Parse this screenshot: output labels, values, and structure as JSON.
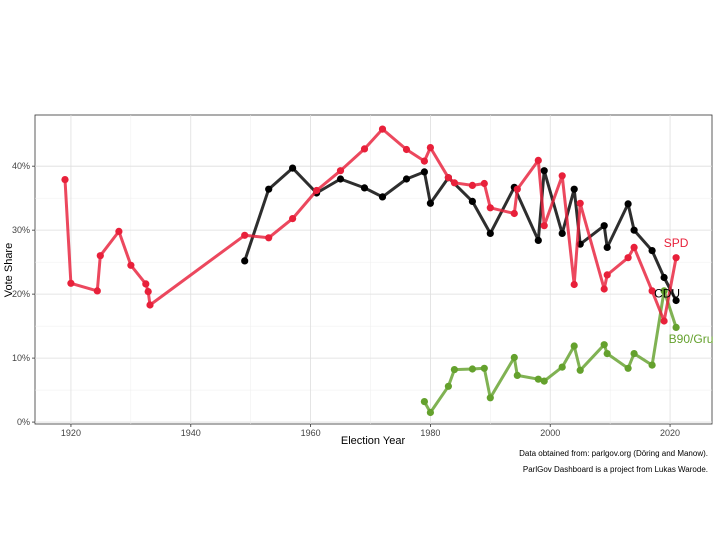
{
  "chart_data": {
    "type": "line",
    "title": "",
    "xlabel": "Election Year",
    "ylabel": "Vote Share",
    "xlim": [
      1914,
      2027
    ],
    "ylim": [
      -0.3,
      48
    ],
    "x_ticks": [
      1920,
      1940,
      1960,
      1980,
      2000,
      2020
    ],
    "y_ticks": [
      0,
      10,
      20,
      30,
      40
    ],
    "y_tick_labels": [
      "0%",
      "10%",
      "20%",
      "30%",
      "40%"
    ],
    "grid": true,
    "legend": "none",
    "series": [
      {
        "name": "SPD",
        "color": "#e8203a",
        "x": [
          1919,
          1920,
          1924.4,
          1924.9,
          1928,
          1930,
          1932.5,
          1932.9,
          1933.2,
          1949,
          1953,
          1957,
          1961,
          1965,
          1969,
          1972,
          1976,
          1980,
          1983,
          1987,
          1990,
          1994,
          1998,
          2002,
          2005,
          2009,
          2013,
          2017,
          2021
        ],
        "y": [
          37.9,
          21.7,
          20.5,
          26.0,
          29.8,
          24.5,
          21.6,
          20.4,
          18.3,
          29.2,
          28.8,
          31.8,
          36.2,
          39.3,
          42.7,
          45.8,
          42.6,
          42.9,
          38.2,
          37.0,
          33.5,
          36.4,
          40.9,
          38.5,
          34.2,
          23.0,
          25.7,
          20.5,
          25.7
        ]
      },
      {
        "name": "CDU",
        "color": "#000000",
        "x": [
          1949,
          1953,
          1957,
          1961,
          1965,
          1969,
          1972,
          1976,
          1980,
          1983,
          1987,
          1990,
          1994,
          1998,
          2002,
          2005,
          2009,
          2013,
          2017,
          2021
        ],
        "y": [
          25.2,
          36.4,
          39.7,
          35.8,
          38.0,
          36.6,
          35.2,
          38.0,
          34.2,
          38.2,
          34.5,
          36.7,
          34.2,
          28.4,
          29.5,
          27.8,
          27.3,
          34.1,
          26.8,
          19.0
        ]
      },
      {
        "name": "B90/Gru",
        "color": "#64a12d",
        "x": [
          1980,
          1983,
          1987,
          1990,
          1994,
          1998,
          2002,
          2005,
          2009,
          2013,
          2017,
          2021
        ],
        "y": [
          1.5,
          5.6,
          8.3,
          3.8,
          7.3,
          6.7,
          8.6,
          8.1,
          10.7,
          8.4,
          8.9,
          14.8
        ]
      }
    ],
    "series_paths": [
      {
        "name": "SPD",
        "color": "#e8203a",
        "x": [
          1919,
          1920,
          1924.4,
          1924.9,
          1928,
          1930,
          1932.5,
          1932.9,
          1933.2,
          1949,
          1953,
          1957,
          1961,
          1965,
          1969,
          1972,
          1976,
          1979,
          1980,
          1983,
          1984,
          1987,
          1989,
          1990,
          1994,
          1994.5,
          1998,
          1999,
          2002,
          2004,
          2005,
          2009,
          2009.5,
          2013,
          2014,
          2017,
          2019,
          2021
        ],
        "y": [
          37.9,
          21.7,
          20.5,
          26.0,
          29.8,
          24.5,
          21.6,
          20.4,
          18.3,
          29.2,
          28.8,
          31.8,
          36.2,
          39.3,
          42.7,
          45.8,
          42.6,
          40.8,
          42.9,
          38.2,
          37.4,
          37.0,
          37.3,
          33.5,
          32.6,
          36.4,
          40.9,
          30.7,
          38.5,
          21.5,
          34.2,
          20.8,
          23.0,
          25.7,
          27.3,
          20.5,
          15.8,
          25.7
        ]
      },
      {
        "name": "CDU",
        "color": "#000000",
        "x": [
          1949,
          1953,
          1957,
          1961,
          1965,
          1969,
          1972,
          1976,
          1979,
          1980,
          1983,
          1987,
          1990,
          1994,
          1998,
          1999,
          2002,
          2004,
          2005,
          2009,
          2009.5,
          2013,
          2014,
          2017,
          2019,
          2021
        ],
        "y": [
          25.2,
          36.4,
          39.7,
          35.8,
          38.0,
          36.6,
          35.2,
          38.0,
          39.1,
          34.2,
          38.2,
          34.5,
          29.5,
          36.7,
          28.4,
          39.3,
          29.5,
          36.4,
          27.8,
          30.7,
          27.3,
          34.1,
          30.0,
          26.8,
          22.6,
          19.0
        ]
      },
      {
        "name": "B90/Gru",
        "color": "#64a12d",
        "x": [
          1979,
          1980,
          1983,
          1984,
          1987,
          1989,
          1990,
          1994,
          1994.5,
          1998,
          1999,
          2002,
          2004,
          2005,
          2009,
          2009.5,
          2013,
          2014,
          2017,
          2019,
          2021
        ],
        "y": [
          3.2,
          1.5,
          5.6,
          8.2,
          8.3,
          8.4,
          3.8,
          10.1,
          7.3,
          6.7,
          6.4,
          8.6,
          11.9,
          8.1,
          12.1,
          10.7,
          8.4,
          10.7,
          8.9,
          20.5,
          14.8
        ]
      }
    ],
    "series_labels": [
      {
        "text": "SPD",
        "color": "#e8203a",
        "x": 2021,
        "y": 27.4,
        "anchor": "middle"
      },
      {
        "text": "CDU",
        "color": "#000000",
        "x": 2019.5,
        "y": 19.5,
        "anchor": "middle"
      },
      {
        "text": "B90/Gru",
        "color": "#64a12d",
        "x": 2023.5,
        "y": 12.4,
        "anchor": "middle"
      }
    ],
    "captions": [
      "Data obtained from: parlgov.org (Döring and Manow).",
      "ParlGov Dashboard is a project from Lukas Warode."
    ]
  }
}
